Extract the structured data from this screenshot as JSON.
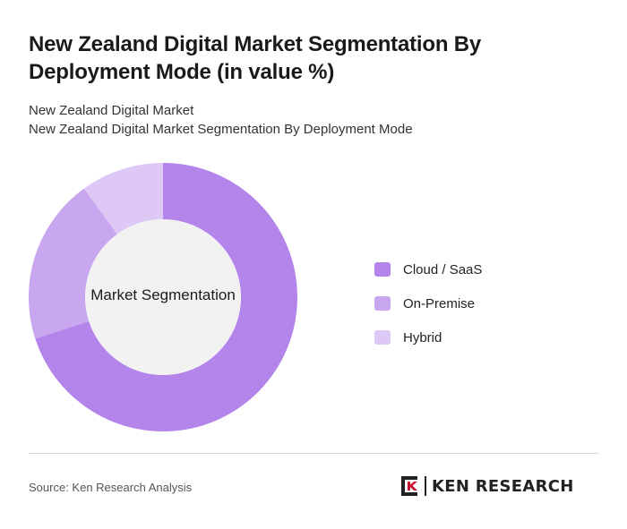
{
  "header": {
    "title": "New Zealand Digital Market Segmentation By Deployment Mode (in value %)",
    "subtitle_line1": "New Zealand Digital Market",
    "subtitle_line2": "New Zealand Digital Market Segmentation By Deployment Mode"
  },
  "chart_data": {
    "type": "pie",
    "center_label": "Market Segmentation",
    "categories": [
      "Cloud / SaaS",
      "On-Premise",
      "Hybrid"
    ],
    "values": [
      70,
      20,
      10
    ],
    "colors": [
      "#b385eb",
      "#c9a6f0",
      "#dec8f6"
    ],
    "center_color": "#f2f2f2",
    "legend_position": "right"
  },
  "footer": {
    "source": "Source: Ken Research Analysis",
    "logo_text": "KEN RESEARCH"
  }
}
